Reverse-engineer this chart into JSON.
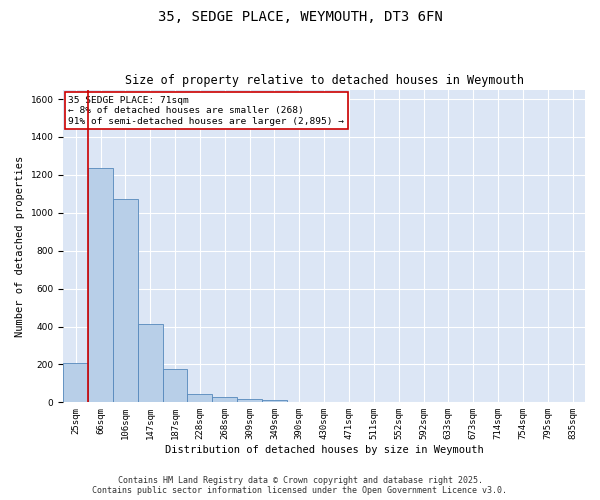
{
  "title_line1": "35, SEDGE PLACE, WEYMOUTH, DT3 6FN",
  "title_line2": "Size of property relative to detached houses in Weymouth",
  "xlabel": "Distribution of detached houses by size in Weymouth",
  "ylabel": "Number of detached properties",
  "categories": [
    "25sqm",
    "66sqm",
    "106sqm",
    "147sqm",
    "187sqm",
    "228sqm",
    "268sqm",
    "309sqm",
    "349sqm",
    "390sqm",
    "430sqm",
    "471sqm",
    "511sqm",
    "552sqm",
    "592sqm",
    "633sqm",
    "673sqm",
    "714sqm",
    "754sqm",
    "795sqm",
    "835sqm"
  ],
  "values": [
    205,
    1235,
    1075,
    415,
    178,
    45,
    27,
    18,
    10,
    0,
    0,
    0,
    0,
    0,
    0,
    0,
    0,
    0,
    0,
    0,
    0
  ],
  "bar_color": "#b8cfe8",
  "bar_edge_color": "#5588bb",
  "vline_color": "#cc0000",
  "annotation_text": "35 SEDGE PLACE: 71sqm\n← 8% of detached houses are smaller (268)\n91% of semi-detached houses are larger (2,895) →",
  "annotation_box_facecolor": "#ffffff",
  "annotation_box_edge_color": "#cc0000",
  "ylim": [
    0,
    1650
  ],
  "yticks": [
    0,
    200,
    400,
    600,
    800,
    1000,
    1200,
    1400,
    1600
  ],
  "background_color": "#dce6f5",
  "grid_color": "#ffffff",
  "footer_line1": "Contains HM Land Registry data © Crown copyright and database right 2025.",
  "footer_line2": "Contains public sector information licensed under the Open Government Licence v3.0.",
  "title_fontsize": 10,
  "subtitle_fontsize": 8.5,
  "axis_label_fontsize": 7.5,
  "tick_fontsize": 6.5,
  "annotation_fontsize": 6.8,
  "footer_fontsize": 6.0
}
